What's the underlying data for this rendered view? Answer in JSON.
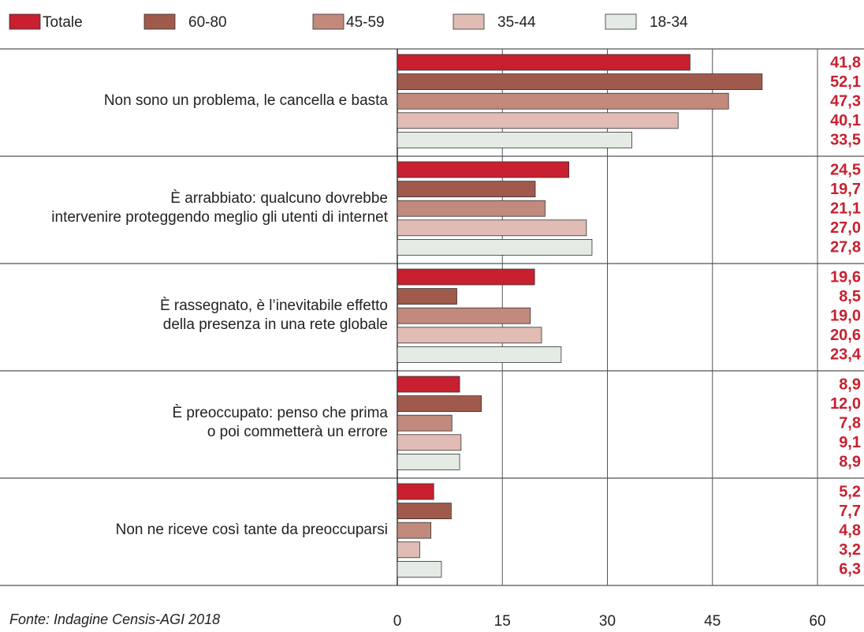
{
  "chart_data": {
    "type": "bar",
    "orientation": "horizontal",
    "source": "Fonte: Indagine Censis-AGI 2018",
    "categories": [
      "Non sono un problema, le cancella e basta",
      "È arrabbiato: qualcuno dovrebbe\nintervenire proteggendo meglio gli utenti di internet",
      "È rassegnato, è l’inevitabile effetto\ndella presenza in una rete globale",
      "È preoccupato: penso che prima\no poi commetterà un errore",
      "Non ne riceve così tante da preoccuparsi"
    ],
    "series": [
      {
        "name": "Totale",
        "color": "#c8202f",
        "values": [
          41.8,
          24.5,
          19.6,
          8.9,
          5.2
        ],
        "value_labels": [
          "41,8",
          "24,5",
          "19,6",
          "8,9",
          "5,2"
        ]
      },
      {
        "name": "60-80",
        "color": "#a05a4c",
        "values": [
          52.1,
          19.7,
          8.5,
          12.0,
          7.7
        ],
        "value_labels": [
          "52,1",
          "19,7",
          "8,5",
          "12,0",
          "7,7"
        ]
      },
      {
        "name": "45-59",
        "color": "#c18a7c",
        "values": [
          47.3,
          21.1,
          19.0,
          7.8,
          4.8
        ],
        "value_labels": [
          "47,3",
          "21,1",
          "19,0",
          "7,8",
          "4,8"
        ]
      },
      {
        "name": "35-44",
        "color": "#e0bcb4",
        "values": [
          40.1,
          27.0,
          20.6,
          9.1,
          3.2
        ],
        "value_labels": [
          "40,1",
          "27,0",
          "20,6",
          "9,1",
          "3,2"
        ]
      },
      {
        "name": "18-34",
        "color": "#e4ebe4",
        "values": [
          33.5,
          27.8,
          23.4,
          8.9,
          6.3
        ],
        "value_labels": [
          "33,5",
          "27,8",
          "23,4",
          "8,9",
          "6,3"
        ]
      }
    ],
    "value_label_color": "#c8202f",
    "xlim": [
      0,
      60
    ],
    "xticks": [
      0,
      15,
      30,
      45,
      60
    ],
    "grid": true
  }
}
